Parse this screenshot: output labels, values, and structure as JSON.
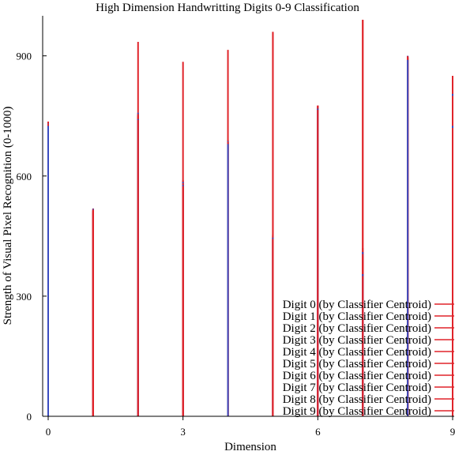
{
  "chart_data": {
    "type": "bar",
    "title": "High Dimension Handwritting Digits 0-9 Classification",
    "xlabel": "Dimension",
    "ylabel": "Strength of Visual Pixel Recognition (0-1000)",
    "xlim": [
      0,
      9
    ],
    "ylim": [
      0,
      1000
    ],
    "xticks": [
      "0",
      "3",
      "6",
      "9"
    ],
    "yticks": [
      "0",
      "300",
      "600",
      "900"
    ],
    "grid": false,
    "legend_position": "bottom-right",
    "series_colors": [
      "#e0242a",
      "#3b4cc0"
    ],
    "x": [
      0,
      1,
      2,
      3,
      4,
      5,
      6,
      7,
      8,
      9
    ],
    "series": [
      {
        "name": "Digit 0 (by Classifier Centroid)",
        "values": [
          735,
          515,
          752,
          570,
          685,
          440,
          775,
          350,
          895,
          720
        ]
      },
      {
        "name": "Digit 1 (by Classifier Centroid)",
        "values": [
          725,
          518,
          758,
          585,
          680,
          445,
          770,
          355,
          890,
          725
        ]
      },
      {
        "name": "Digit 2 (by Classifier Centroid)",
        "values": [
          730,
          510,
          935,
          575,
          690,
          960,
          770,
          990,
          900,
          760
        ]
      },
      {
        "name": "Digit 3 (by Classifier Centroid)",
        "values": [
          728,
          512,
          750,
          885,
          688,
          450,
          775,
          400,
          895,
          830
        ]
      },
      {
        "name": "Digit 4 (by Classifier Centroid)",
        "values": [
          732,
          516,
          755,
          590,
          915,
          455,
          772,
          380,
          898,
          800
        ]
      },
      {
        "name": "Digit 5 (by Classifier Centroid)",
        "values": [
          734,
          514,
          745,
          580,
          685,
          958,
          776,
          420,
          896,
          790
        ]
      },
      {
        "name": "Digit 6 (by Classifier Centroid)",
        "values": [
          736,
          508,
          748,
          572,
          682,
          448,
          776,
          395,
          893,
          785
        ]
      },
      {
        "name": "Digit 7 (by Classifier Centroid)",
        "values": [
          733,
          513,
          740,
          582,
          684,
          452,
          765,
          990,
          897,
          810
        ]
      },
      {
        "name": "Digit 8 (by Classifier Centroid)",
        "values": [
          731,
          517,
          742,
          578,
          687,
          446,
          768,
          410,
          900,
          805
        ]
      },
      {
        "name": "Digit 9 (by Classifier Centroid)",
        "values": [
          734,
          519,
          746,
          588,
          689,
          443,
          773,
          405,
          899,
          850
        ]
      }
    ]
  }
}
